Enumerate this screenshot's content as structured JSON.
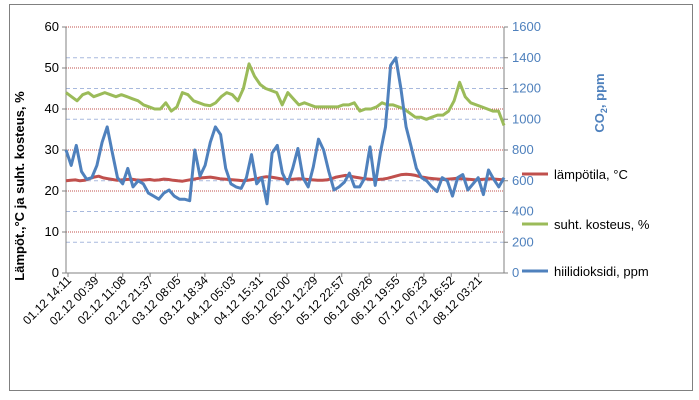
{
  "chart_data": {
    "type": "line",
    "y_left_label": "Lämpöt.,°C ja suht. kosteus, %",
    "y_right_label": "CO",
    "y_right_label_sub": "2",
    "y_right_label_tail": ", ppm",
    "y_left_lim": [
      0,
      60
    ],
    "y_left_ticks": [
      0,
      10,
      20,
      30,
      40,
      50,
      60
    ],
    "y_right_lim": [
      0,
      1600
    ],
    "y_right_ticks": [
      0,
      200,
      400,
      600,
      800,
      1000,
      1200,
      1400,
      1600
    ],
    "x_tick_labels": [
      "01.12 14:11",
      "02.12 00:39",
      "02.12 11:08",
      "02.12 21:37",
      "03.12 08:05",
      "03.12 18:34",
      "04.12 05:03",
      "04.12 15:31",
      "05.12 02:00",
      "05.12 12:29",
      "05.12 22:57",
      "06.12 09:26",
      "06.12 19:55",
      "07.12 06:23",
      "07.12 16:52",
      "08.12 03:21"
    ],
    "grid": {
      "left_major": true,
      "right_dashed": true
    },
    "legend_position": "right",
    "series": [
      {
        "name": "lämpötila, °C",
        "axis": "left",
        "color": "#c0504d",
        "values": [
          22.5,
          22.6,
          22.7,
          22.5,
          22.6,
          23.0,
          23.4,
          23.6,
          23.2,
          23.0,
          22.8,
          22.6,
          22.7,
          22.8,
          22.9,
          22.7,
          22.6,
          22.7,
          22.8,
          22.6,
          22.7,
          22.9,
          22.8,
          22.6,
          22.5,
          22.4,
          22.6,
          22.8,
          23.0,
          23.2,
          23.3,
          23.4,
          23.2,
          23.0,
          22.9,
          22.8,
          22.7,
          22.6,
          22.5,
          22.6,
          22.8,
          23.0,
          23.3,
          23.5,
          23.4,
          23.2,
          23.0,
          22.8,
          22.8,
          22.9,
          23.0,
          22.9,
          22.8,
          22.7,
          22.6,
          22.6,
          22.7,
          23.0,
          23.4,
          23.6,
          23.8,
          23.6,
          23.4,
          23.2,
          23.0,
          22.9,
          22.8,
          22.8,
          22.9,
          23.1,
          23.4,
          23.7,
          24.0,
          24.1,
          24.0,
          23.8,
          23.5,
          23.3,
          23.1,
          23.0,
          22.9,
          22.8,
          22.9,
          23.0,
          23.1,
          23.0,
          22.9,
          22.8,
          22.7,
          22.8,
          22.9,
          23.0,
          22.9,
          22.8,
          22.7
        ]
      },
      {
        "name": "suht. kosteus, %",
        "axis": "left",
        "color": "#9bbb59",
        "values": [
          44.0,
          43.0,
          42.0,
          43.5,
          44.0,
          43.0,
          43.5,
          44.0,
          43.5,
          43.0,
          43.5,
          43.0,
          42.5,
          42.0,
          41.0,
          40.5,
          40.0,
          40.0,
          41.5,
          39.5,
          40.5,
          44.0,
          43.5,
          42.0,
          41.5,
          41.0,
          40.8,
          41.5,
          43.0,
          44.0,
          43.5,
          42.0,
          45.0,
          51.0,
          48.0,
          46.0,
          45.0,
          44.5,
          44.0,
          41.0,
          44.0,
          42.5,
          41.0,
          41.5,
          41.0,
          40.5,
          40.5,
          40.5,
          40.5,
          40.5,
          41.0,
          41.0,
          41.5,
          39.5,
          40.0,
          40.0,
          40.5,
          41.5,
          41.0,
          41.0,
          40.5,
          40.0,
          39.0,
          38.0,
          38.0,
          37.5,
          38.0,
          38.5,
          38.5,
          39.5,
          42.0,
          46.5,
          43.0,
          41.5,
          41.0,
          40.5,
          40.0,
          39.5,
          39.5,
          36.0
        ]
      },
      {
        "name": "hiilidioksidi, ppm",
        "axis": "right",
        "color": "#4f81bd",
        "values": [
          800,
          700,
          830,
          660,
          610,
          620,
          700,
          850,
          950,
          780,
          620,
          580,
          680,
          560,
          600,
          580,
          520,
          500,
          480,
          520,
          540,
          500,
          480,
          480,
          470,
          800,
          630,
          700,
          850,
          950,
          900,
          680,
          580,
          560,
          550,
          620,
          770,
          580,
          620,
          450,
          780,
          830,
          650,
          580,
          680,
          810,
          620,
          560,
          690,
          870,
          800,
          660,
          540,
          560,
          590,
          650,
          560,
          560,
          620,
          820,
          570,
          780,
          950,
          1350,
          1400,
          1200,
          950,
          820,
          680,
          620,
          600,
          560,
          530,
          620,
          600,
          500,
          620,
          640,
          540,
          580,
          620,
          510,
          670,
          610,
          560,
          620
        ]
      }
    ]
  }
}
